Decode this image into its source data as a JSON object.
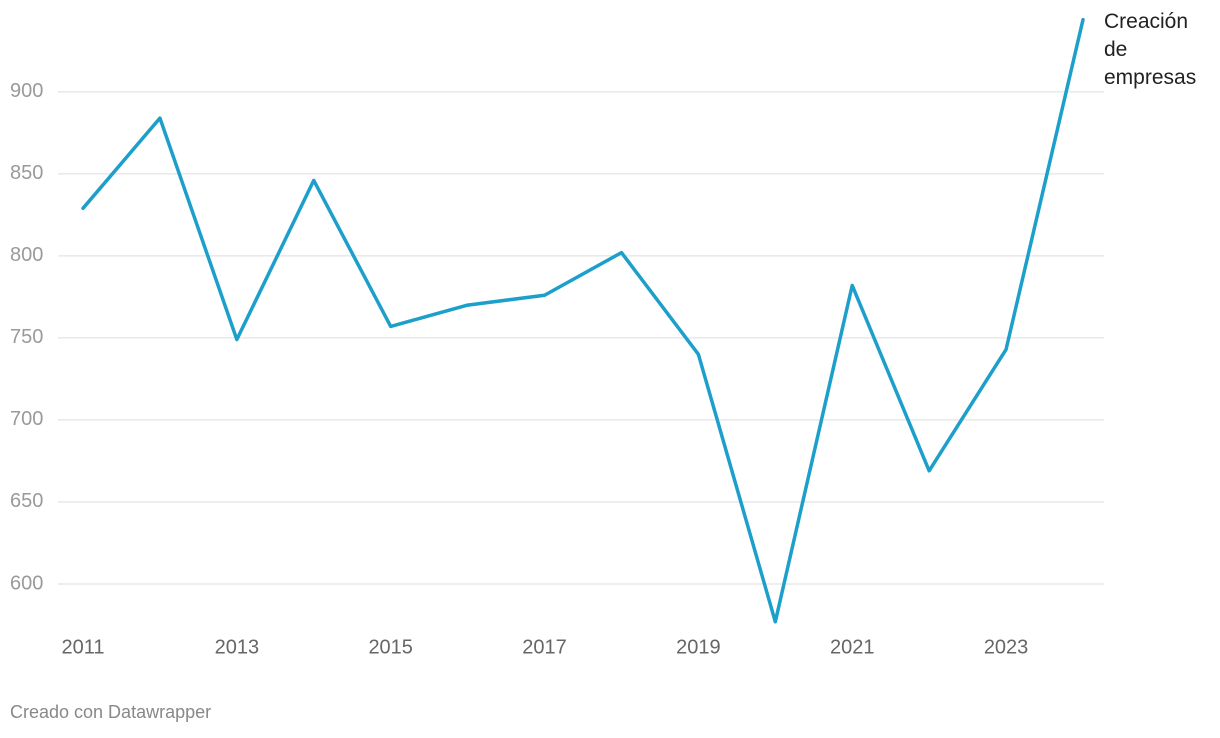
{
  "chart_data": {
    "type": "line",
    "x": [
      2011,
      2012,
      2013,
      2014,
      2015,
      2016,
      2017,
      2018,
      2019,
      2020,
      2021,
      2022,
      2023,
      2024
    ],
    "series": [
      {
        "name": "Creación de empresas",
        "color": "#1d9fcb",
        "values": [
          829,
          884,
          749,
          846,
          757,
          770,
          776,
          802,
          740,
          577,
          782,
          669,
          743,
          944
        ]
      }
    ],
    "xlim": [
      2011,
      2024
    ],
    "xticks": [
      2011,
      2013,
      2015,
      2017,
      2019,
      2021,
      2023
    ],
    "ylim": [
      575,
      945
    ],
    "yticks": [
      600,
      650,
      700,
      750,
      800,
      850,
      900
    ],
    "grid": true,
    "footer": "Creado con Datawrapper"
  }
}
